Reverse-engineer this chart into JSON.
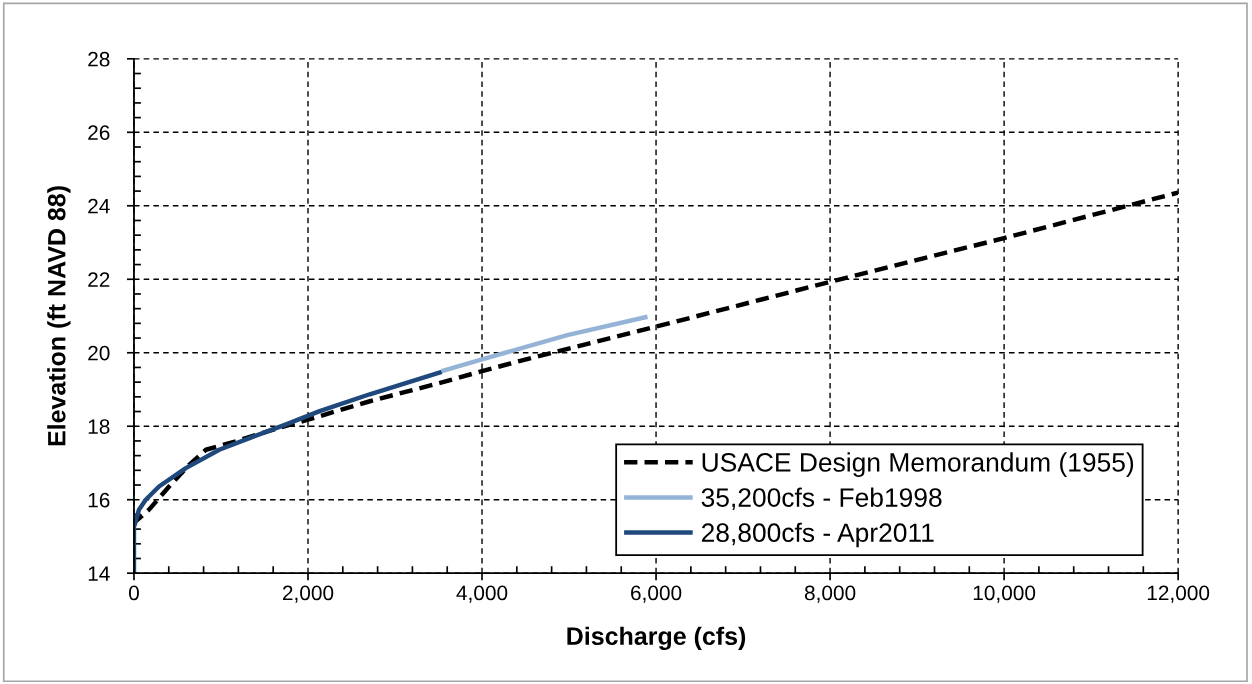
{
  "chart_data": {
    "type": "line",
    "xlabel": "Discharge (cfs)",
    "ylabel": "Elevation (ft NAVD 88)",
    "xlim": [
      0,
      12000
    ],
    "ylim": [
      14,
      28
    ],
    "xticks": [
      0,
      {
        "value": 400,
        "label": null
      },
      {
        "value": 800,
        "label": null
      },
      {
        "value": 1200,
        "label": null
      },
      {
        "value": 1600,
        "label": null
      },
      {
        "value": 2000,
        "label": "2,000"
      },
      {
        "value": 2400,
        "label": null
      },
      {
        "value": 2800,
        "label": null
      },
      {
        "value": 3200,
        "label": null
      },
      {
        "value": 3600,
        "label": null
      },
      {
        "value": 4000,
        "label": "4,000"
      },
      {
        "value": 4400,
        "label": null
      },
      {
        "value": 4800,
        "label": null
      },
      {
        "value": 5200,
        "label": null
      },
      {
        "value": 5600,
        "label": null
      },
      {
        "value": 6000,
        "label": "6,000"
      },
      {
        "value": 6400,
        "label": null
      },
      {
        "value": 6800,
        "label": null
      },
      {
        "value": 7200,
        "label": null
      },
      {
        "value": 7600,
        "label": null
      },
      {
        "value": 8000,
        "label": "8,000"
      },
      {
        "value": 8400,
        "label": null
      },
      {
        "value": 8800,
        "label": null
      },
      {
        "value": 9200,
        "label": null
      },
      {
        "value": 9600,
        "label": null
      },
      {
        "value": 10000,
        "label": "10,000"
      },
      {
        "value": 10400,
        "label": null
      },
      {
        "value": 10800,
        "label": null
      },
      {
        "value": 11200,
        "label": null
      },
      {
        "value": 11600,
        "label": null
      },
      {
        "value": 12000,
        "label": "12,000"
      }
    ],
    "yticks": [
      14,
      {
        "value": 14.4,
        "label": null
      },
      {
        "value": 14.8,
        "label": null
      },
      {
        "value": 15.2,
        "label": null
      },
      {
        "value": 15.6,
        "label": null
      },
      16,
      {
        "value": 16.4,
        "label": null
      },
      {
        "value": 16.8,
        "label": null
      },
      {
        "value": 17.2,
        "label": null
      },
      {
        "value": 17.6,
        "label": null
      },
      18,
      {
        "value": 18.4,
        "label": null
      },
      {
        "value": 18.8,
        "label": null
      },
      {
        "value": 19.2,
        "label": null
      },
      {
        "value": 19.6,
        "label": null
      },
      20,
      {
        "value": 20.4,
        "label": null
      },
      {
        "value": 20.8,
        "label": null
      },
      {
        "value": 21.2,
        "label": null
      },
      {
        "value": 21.6,
        "label": null
      },
      22,
      {
        "value": 22.4,
        "label": null
      },
      {
        "value": 22.8,
        "label": null
      },
      {
        "value": 23.2,
        "label": null
      },
      {
        "value": 23.6,
        "label": null
      },
      24,
      {
        "value": 24.4,
        "label": null
      },
      {
        "value": 24.8,
        "label": null
      },
      {
        "value": 25.2,
        "label": null
      },
      {
        "value": 25.6,
        "label": null
      },
      26,
      {
        "value": 26.4,
        "label": null
      },
      {
        "value": 26.8,
        "label": null
      },
      {
        "value": 27.2,
        "label": null
      },
      {
        "value": 27.6,
        "label": null
      },
      28
    ],
    "grid": true,
    "legend": "bottom right",
    "series": [
      {
        "name": "USACE Design Memorandum (1955)",
        "color": "#000000",
        "line_style": "dashed",
        "x": [
          0,
          19,
          173,
          404,
          634,
          827,
          1173,
          1672,
          2000,
          2711,
          3518,
          4000,
          4441,
          6000,
          8000,
          10000,
          12000
        ],
        "values": [
          15.3,
          15.41,
          15.73,
          16.36,
          16.95,
          17.36,
          17.59,
          17.96,
          18.18,
          18.68,
          19.18,
          19.5,
          19.78,
          20.71,
          21.93,
          23.12,
          24.36
        ]
      },
      {
        "name": "35,200cfs - Feb1998",
        "color": "#95b3d7",
        "line_style": "solid",
        "x": [
          3537,
          4000,
          4979,
          5902
        ],
        "values": [
          19.5,
          19.82,
          20.48,
          20.98
        ]
      },
      {
        "name": "28,800cfs - Apr2011",
        "color": "#1f497d",
        "line_style": "solid",
        "x": [
          0,
          0,
          58,
          135,
          288,
          596,
          980,
          1365,
          1749,
          2134,
          2710,
          3537
        ],
        "values": [
          14,
          15.27,
          15.73,
          16.0,
          16.36,
          16.86,
          17.36,
          17.71,
          18.05,
          18.41,
          18.87,
          19.48
        ]
      }
    ]
  }
}
